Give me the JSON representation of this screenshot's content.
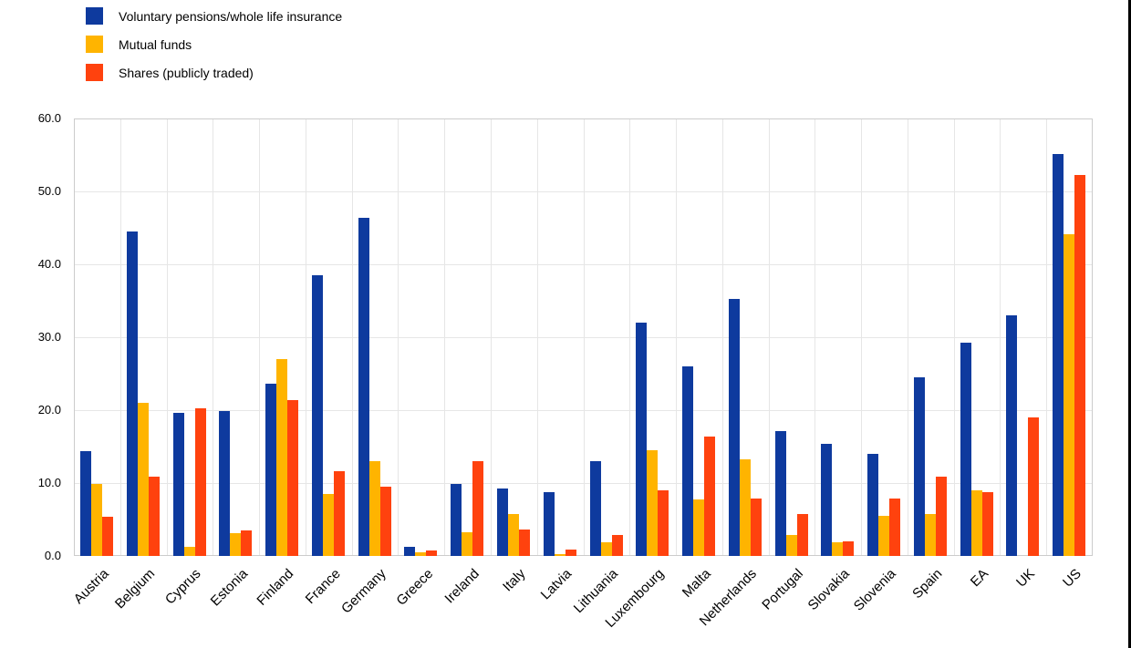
{
  "chart_data": {
    "type": "bar",
    "title": "",
    "xlabel": "",
    "ylabel": "",
    "ylim": [
      0,
      60
    ],
    "y_ticks": [
      "0.0",
      "10.0",
      "20.0",
      "30.0",
      "40.0",
      "50.0",
      "60.0"
    ],
    "grid": true,
    "legend_position": "top-left",
    "categories": [
      "Austria",
      "Belgium",
      "Cyprus",
      "Estonia",
      "Finland",
      "France",
      "Germany",
      "Greece",
      "Ireland",
      "Italy",
      "Latvia",
      "Lithuania",
      "Luxembourg",
      "Malta",
      "Netherlands",
      "Portugal",
      "Slovakia",
      "Slovenia",
      "Spain",
      "EA",
      "UK",
      "US"
    ],
    "series": [
      {
        "name": "Voluntary pensions/whole life insurance",
        "color": "#0e3a9e",
        "values": [
          14.4,
          44.5,
          19.6,
          19.9,
          23.6,
          38.5,
          46.4,
          1.2,
          9.9,
          9.2,
          8.8,
          13.0,
          32.0,
          26.0,
          35.3,
          17.1,
          15.4,
          14.0,
          24.5,
          29.2,
          33.0,
          55.1
        ]
      },
      {
        "name": "Mutual funds",
        "color": "#ffb400",
        "values": [
          9.9,
          21.0,
          1.3,
          3.1,
          27.0,
          8.5,
          13.0,
          0.5,
          3.2,
          5.8,
          0.2,
          1.9,
          14.5,
          7.7,
          13.2,
          2.9,
          1.9,
          5.5,
          5.7,
          9.0,
          0,
          44.1
        ]
      },
      {
        "name": "Shares (publicly traded)",
        "color": "#ff420e",
        "values": [
          5.4,
          10.9,
          20.3,
          3.5,
          21.4,
          11.6,
          9.5,
          0.7,
          13.0,
          3.6,
          0.9,
          2.9,
          9.0,
          16.4,
          7.9,
          5.7,
          2.0,
          7.9,
          10.9,
          8.7,
          19.0,
          52.2
        ]
      }
    ]
  }
}
